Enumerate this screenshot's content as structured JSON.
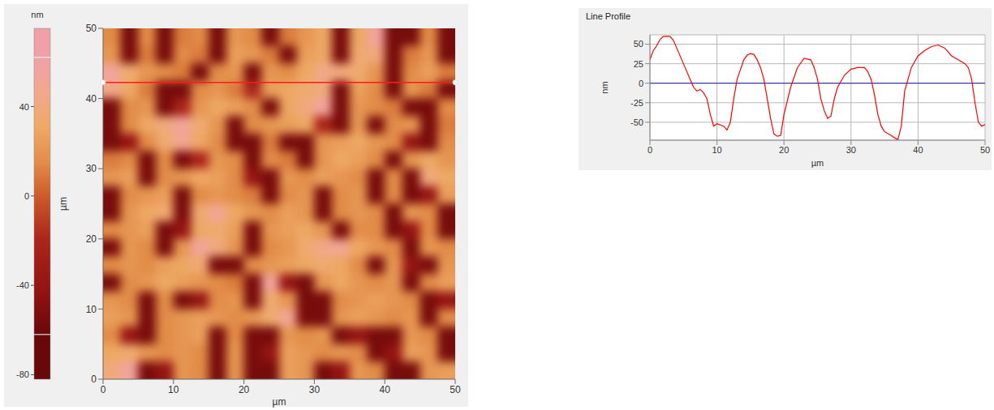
{
  "chart_data": [
    {
      "type": "heatmap",
      "xlabel": "µm",
      "ylabel": "µm",
      "xlim": [
        0,
        50
      ],
      "ylim": [
        0,
        50
      ],
      "xticks": [
        0,
        10,
        20,
        30,
        40,
        50
      ],
      "yticks": [
        0,
        10,
        20,
        30,
        40,
        50
      ],
      "cells": [
        [
          15,
          -55,
          15,
          -55,
          10,
          15,
          -55,
          20,
          15,
          -55,
          10,
          20,
          30,
          -55,
          30,
          55,
          -55,
          -55,
          15,
          -55
        ],
        [
          20,
          -55,
          10,
          -55,
          15,
          10,
          -55,
          25,
          20,
          10,
          -55,
          25,
          30,
          -55,
          35,
          40,
          -55,
          10,
          20,
          -55
        ],
        [
          55,
          35,
          20,
          15,
          10,
          -55,
          15,
          20,
          -55,
          20,
          15,
          30,
          45,
          40,
          35,
          20,
          -55,
          15,
          25,
          10
        ],
        [
          45,
          30,
          10,
          -55,
          -55,
          15,
          20,
          10,
          -20,
          25,
          30,
          35,
          40,
          -55,
          25,
          15,
          -55,
          20,
          10,
          -55
        ],
        [
          -55,
          15,
          20,
          -55,
          -20,
          20,
          30,
          25,
          15,
          -55,
          30,
          40,
          55,
          -55,
          20,
          15,
          10,
          -55,
          -55,
          15
        ],
        [
          -55,
          15,
          30,
          40,
          55,
          35,
          20,
          -55,
          15,
          20,
          25,
          30,
          -20,
          -55,
          20,
          -55,
          15,
          20,
          -55,
          10
        ],
        [
          -55,
          -40,
          15,
          35,
          50,
          30,
          15,
          -55,
          -55,
          10,
          -55,
          -55,
          20,
          25,
          30,
          20,
          15,
          -40,
          -55,
          15
        ],
        [
          10,
          15,
          -55,
          15,
          -55,
          -20,
          20,
          15,
          -55,
          15,
          10,
          -55,
          20,
          30,
          25,
          15,
          -55,
          20,
          30,
          20
        ],
        [
          20,
          25,
          -55,
          15,
          20,
          30,
          25,
          15,
          -40,
          -55,
          20,
          15,
          25,
          20,
          15,
          -55,
          15,
          -55,
          40,
          30
        ],
        [
          -55,
          15,
          20,
          25,
          -55,
          15,
          20,
          15,
          10,
          -55,
          15,
          20,
          -55,
          15,
          20,
          -55,
          15,
          -55,
          -40,
          25
        ],
        [
          -55,
          20,
          30,
          35,
          -55,
          35,
          50,
          30,
          20,
          15,
          25,
          20,
          -55,
          15,
          20,
          15,
          -55,
          20,
          15,
          -55
        ],
        [
          15,
          20,
          25,
          -55,
          -40,
          30,
          35,
          25,
          -55,
          20,
          25,
          30,
          20,
          -55,
          15,
          15,
          -55,
          -40,
          15,
          -55
        ],
        [
          -55,
          20,
          15,
          -55,
          20,
          55,
          40,
          20,
          -55,
          15,
          20,
          35,
          45,
          50,
          30,
          20,
          15,
          -55,
          20,
          15
        ],
        [
          15,
          20,
          15,
          25,
          30,
          35,
          -55,
          -55,
          15,
          20,
          25,
          30,
          35,
          30,
          15,
          -55,
          20,
          -40,
          -55,
          20
        ],
        [
          -55,
          15,
          20,
          30,
          25,
          20,
          15,
          10,
          -55,
          55,
          -40,
          -55,
          20,
          30,
          20,
          15,
          20,
          -55,
          15,
          25
        ],
        [
          20,
          15,
          -55,
          15,
          -55,
          -40,
          15,
          20,
          -55,
          35,
          20,
          -55,
          -55,
          15,
          20,
          25,
          20,
          15,
          -55,
          -40
        ],
        [
          25,
          20,
          -55,
          15,
          20,
          25,
          20,
          15,
          20,
          35,
          50,
          -55,
          -55,
          20,
          25,
          20,
          15,
          20,
          -55,
          15
        ],
        [
          15,
          -40,
          -55,
          15,
          20,
          25,
          -55,
          15,
          -55,
          -55,
          20,
          15,
          20,
          -55,
          -40,
          -55,
          -55,
          20,
          15,
          -55
        ],
        [
          30,
          35,
          20,
          15,
          20,
          15,
          -55,
          20,
          -55,
          -40,
          25,
          20,
          15,
          20,
          15,
          -55,
          -40,
          25,
          20,
          -55
        ],
        [
          40,
          55,
          -55,
          -40,
          20,
          15,
          -55,
          20,
          -55,
          -55,
          25,
          20,
          -55,
          -40,
          20,
          15,
          -55,
          -55,
          20,
          25
        ]
      ],
      "colorbar_label": "nm",
      "colorbar_range": [
        -82,
        75
      ],
      "colorbar_ticks": [
        -80,
        -40,
        0,
        40
      ],
      "display_range": [
        -62,
        62
      ],
      "profile_line_y": 42.3
    },
    {
      "type": "line",
      "title": "Line Profile",
      "xlabel": "µm",
      "ylabel": "nm",
      "xlim": [
        0,
        50
      ],
      "ylim": [
        -73,
        62
      ],
      "xticks": [
        0,
        10,
        20,
        30,
        40,
        50
      ],
      "yticks": [
        -50,
        -25,
        0,
        25,
        50
      ],
      "grid": true,
      "color": "#ff0000",
      "baseline": 0,
      "x": [
        0,
        0.5,
        1,
        1.5,
        2,
        3,
        3.5,
        4,
        5,
        6,
        6.5,
        7,
        7.5,
        8,
        8.5,
        9,
        9.5,
        10,
        11,
        11.5,
        12,
        12.5,
        13,
        14,
        14.5,
        15,
        15.5,
        16,
        16.5,
        17,
        17.5,
        18,
        18.5,
        19,
        19.5,
        20,
        21,
        22,
        23,
        24,
        24.5,
        25,
        25.5,
        26,
        26.5,
        27,
        27.5,
        28,
        29,
        30,
        31,
        32,
        32.5,
        33,
        33.5,
        34,
        34.5,
        35,
        36,
        36.5,
        37,
        37.5,
        38,
        39,
        40,
        41,
        42,
        43,
        44,
        45,
        46,
        47,
        47.5,
        48,
        48.5,
        49,
        49.5,
        50
      ],
      "values": [
        30,
        42,
        48,
        56,
        60,
        60,
        55,
        45,
        25,
        5,
        -5,
        -10,
        -8,
        -12,
        -20,
        -40,
        -55,
        -52,
        -55,
        -60,
        -50,
        -20,
        5,
        30,
        36,
        38,
        37,
        30,
        20,
        5,
        -20,
        -45,
        -65,
        -68,
        -67,
        -40,
        -5,
        20,
        32,
        30,
        20,
        5,
        -20,
        -35,
        -45,
        -42,
        -20,
        -5,
        10,
        18,
        20,
        20,
        15,
        5,
        -15,
        -40,
        -55,
        -62,
        -67,
        -70,
        -72,
        -55,
        -10,
        20,
        35,
        42,
        47,
        49,
        45,
        35,
        30,
        25,
        20,
        5,
        -25,
        -50,
        -55,
        -53
      ]
    }
  ]
}
